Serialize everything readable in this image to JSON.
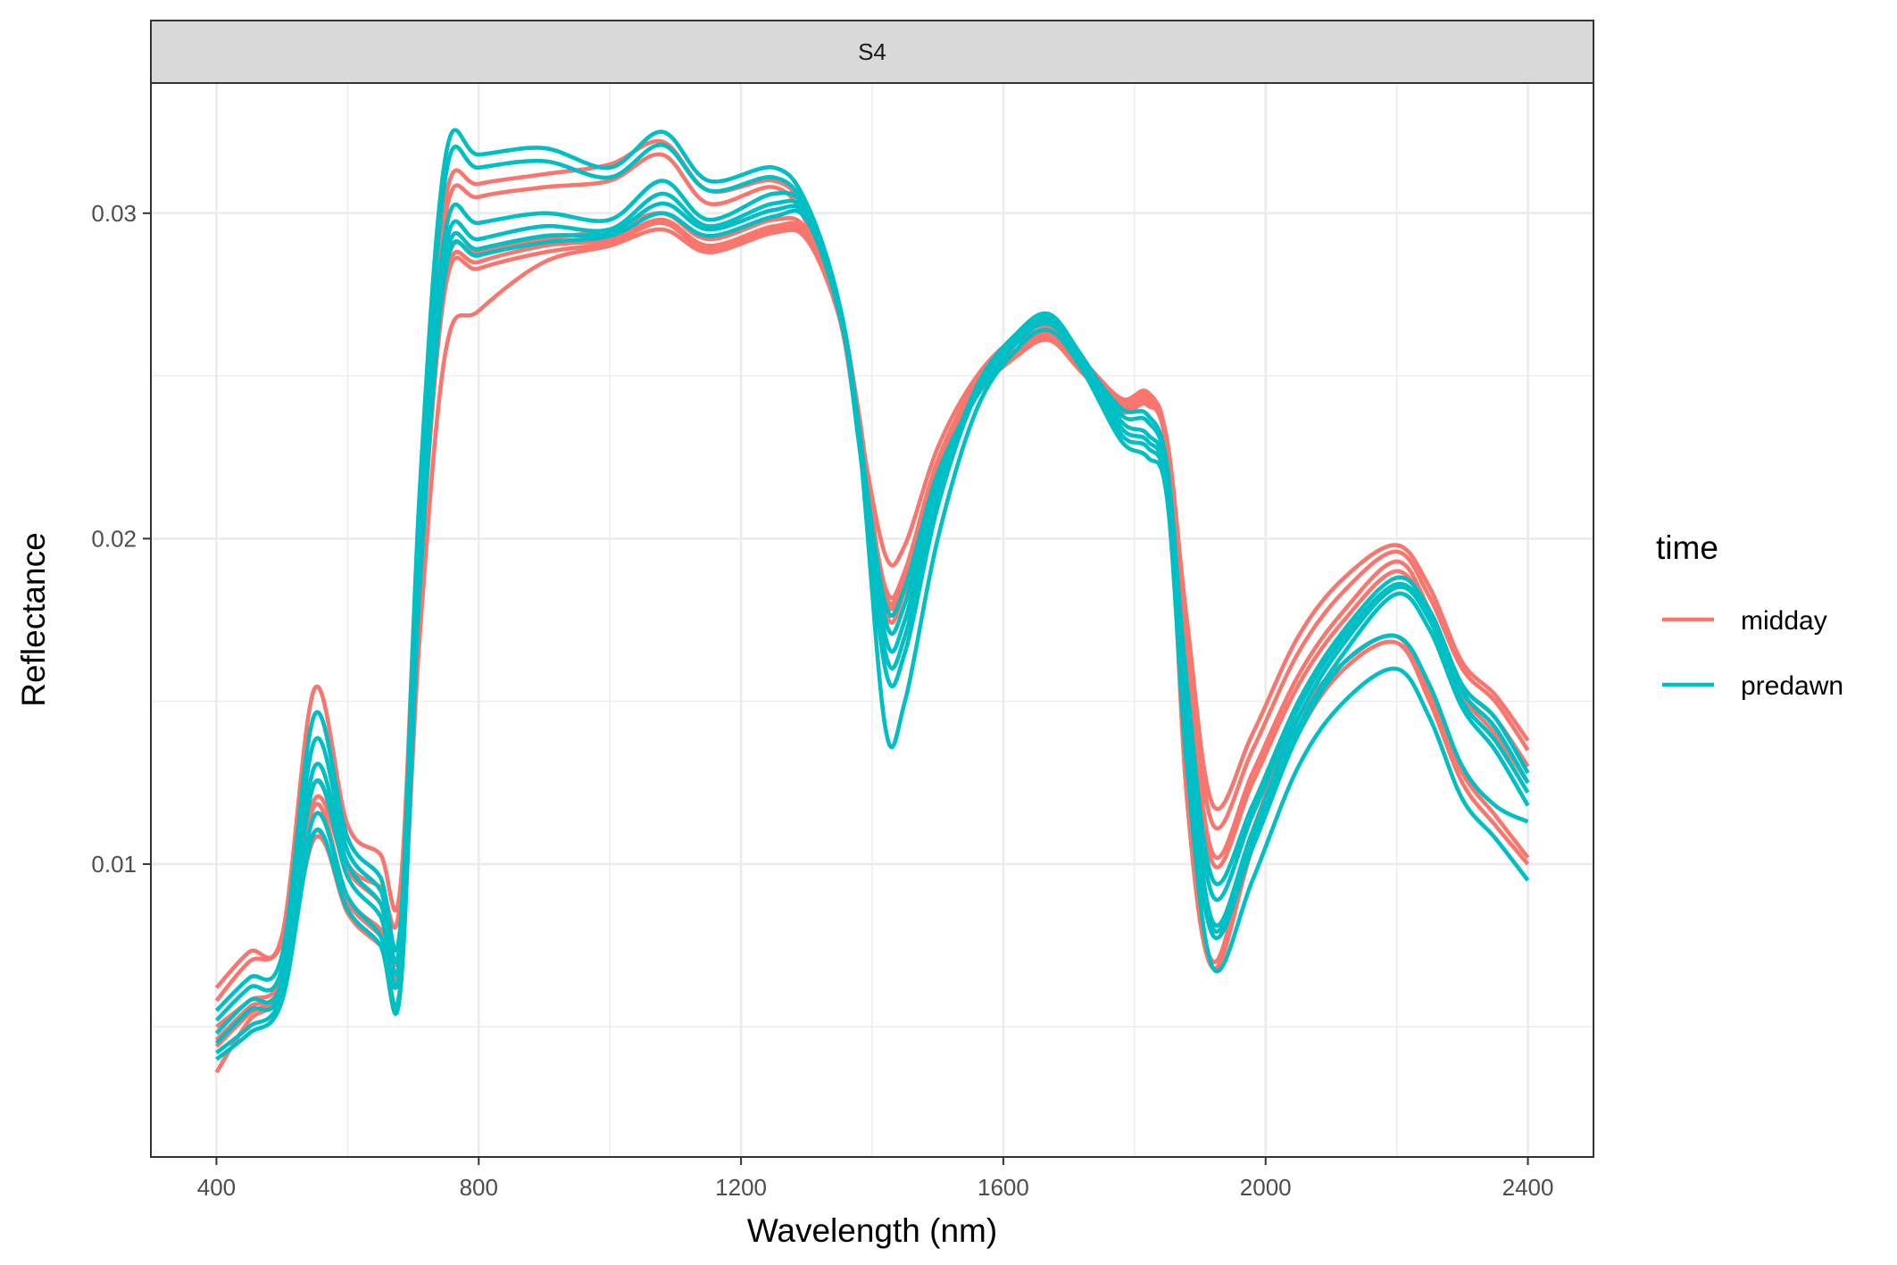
{
  "chart_data": {
    "type": "line",
    "facet_label": "S4",
    "xlabel": "Wavelength (nm)",
    "ylabel": "Reflectance",
    "xlim": [
      300,
      2500
    ],
    "ylim": [
      0.001,
      0.034
    ],
    "x_ticks": [
      400,
      800,
      1200,
      1600,
      2000,
      2400
    ],
    "x_tick_labels": [
      "400",
      "800",
      "1200",
      "1600",
      "2000",
      "2400"
    ],
    "y_ticks": [
      0.01,
      0.02,
      0.03
    ],
    "y_tick_labels": [
      "0.01",
      "0.02",
      "0.03"
    ],
    "grid": true,
    "legend": {
      "title": "time",
      "placement": "right",
      "entries": [
        {
          "label": "midday",
          "color": "#F8766D"
        },
        {
          "label": "predawn",
          "color": "#00BFC4"
        }
      ]
    },
    "x": [
      400,
      450,
      500,
      550,
      600,
      650,
      680,
      710,
      750,
      800,
      900,
      1000,
      1080,
      1150,
      1250,
      1300,
      1350,
      1380,
      1420,
      1450,
      1500,
      1560,
      1620,
      1670,
      1720,
      1780,
      1820,
      1850,
      1880,
      1920,
      1980,
      2050,
      2120,
      2200,
      2250,
      2300,
      2350,
      2400
    ],
    "series": [
      {
        "group": "midday",
        "values": [
          0.0062,
          0.0073,
          0.0078,
          0.0154,
          0.0112,
          0.0103,
          0.0092,
          0.021,
          0.0305,
          0.0309,
          0.0312,
          0.0315,
          0.0322,
          0.0307,
          0.031,
          0.03,
          0.027,
          0.0235,
          0.0195,
          0.0198,
          0.0228,
          0.025,
          0.0262,
          0.0265,
          0.0255,
          0.0243,
          0.0245,
          0.023,
          0.0175,
          0.0118,
          0.014,
          0.017,
          0.0188,
          0.0198,
          0.0185,
          0.0162,
          0.0152,
          0.0138
        ]
      },
      {
        "group": "midday",
        "values": [
          0.0058,
          0.007,
          0.0076,
          0.0125,
          0.01,
          0.0093,
          0.0088,
          0.0205,
          0.03,
          0.0305,
          0.0308,
          0.031,
          0.0318,
          0.0303,
          0.0308,
          0.0297,
          0.0268,
          0.0232,
          0.0185,
          0.019,
          0.0224,
          0.0248,
          0.026,
          0.0264,
          0.0254,
          0.0242,
          0.0244,
          0.0229,
          0.017,
          0.0112,
          0.0135,
          0.0165,
          0.0184,
          0.0196,
          0.0182,
          0.016,
          0.015,
          0.0135
        ]
      },
      {
        "group": "midday",
        "values": [
          0.005,
          0.0058,
          0.0066,
          0.012,
          0.0098,
          0.0088,
          0.0075,
          0.0195,
          0.0283,
          0.0288,
          0.0292,
          0.0295,
          0.03,
          0.0292,
          0.0298,
          0.0295,
          0.027,
          0.0238,
          0.0182,
          0.0188,
          0.0222,
          0.0246,
          0.0258,
          0.0263,
          0.0253,
          0.0241,
          0.0243,
          0.0228,
          0.0165,
          0.0103,
          0.0128,
          0.0158,
          0.0178,
          0.0193,
          0.0178,
          0.0155,
          0.0145,
          0.013
        ]
      },
      {
        "group": "midday",
        "values": [
          0.0046,
          0.0056,
          0.0064,
          0.0118,
          0.009,
          0.008,
          0.0072,
          0.019,
          0.028,
          0.0285,
          0.029,
          0.0292,
          0.0298,
          0.029,
          0.0296,
          0.0294,
          0.0269,
          0.0237,
          0.018,
          0.0186,
          0.022,
          0.0245,
          0.0257,
          0.0262,
          0.0252,
          0.024,
          0.0242,
          0.0227,
          0.016,
          0.01,
          0.0125,
          0.0155,
          0.0175,
          0.019,
          0.0176,
          0.0152,
          0.014,
          0.0125
        ]
      },
      {
        "group": "midday",
        "values": [
          0.0036,
          0.0052,
          0.0062,
          0.011,
          0.0085,
          0.0075,
          0.0068,
          0.017,
          0.0258,
          0.027,
          0.0285,
          0.029,
          0.0295,
          0.0288,
          0.0294,
          0.0292,
          0.0268,
          0.0236,
          0.0183,
          0.019,
          0.0224,
          0.0247,
          0.0258,
          0.0262,
          0.0252,
          0.0241,
          0.0243,
          0.0226,
          0.012,
          0.0068,
          0.0105,
          0.014,
          0.016,
          0.0168,
          0.015,
          0.0125,
          0.0112,
          0.01
        ]
      },
      {
        "group": "midday",
        "values": [
          0.0044,
          0.0054,
          0.0063,
          0.0108,
          0.0088,
          0.0078,
          0.007,
          0.0185,
          0.0278,
          0.0283,
          0.0288,
          0.0291,
          0.0297,
          0.0289,
          0.0295,
          0.0293,
          0.0268,
          0.0236,
          0.0178,
          0.0184,
          0.0219,
          0.0244,
          0.0256,
          0.0261,
          0.0251,
          0.0239,
          0.0241,
          0.0225,
          0.0125,
          0.007,
          0.011,
          0.0145,
          0.0162,
          0.017,
          0.0152,
          0.0128,
          0.0115,
          0.0102
        ]
      },
      {
        "group": "predawn",
        "values": [
          0.0055,
          0.0065,
          0.0072,
          0.0146,
          0.0108,
          0.0096,
          0.008,
          0.0215,
          0.0318,
          0.0318,
          0.032,
          0.0314,
          0.0325,
          0.031,
          0.0314,
          0.0303,
          0.0272,
          0.023,
          0.016,
          0.0165,
          0.021,
          0.0245,
          0.0262,
          0.0268,
          0.0255,
          0.024,
          0.0238,
          0.0222,
          0.0155,
          0.0095,
          0.0118,
          0.015,
          0.0172,
          0.0188,
          0.0178,
          0.0155,
          0.0145,
          0.0128
        ]
      },
      {
        "group": "predawn",
        "values": [
          0.0052,
          0.0062,
          0.0068,
          0.0138,
          0.0104,
          0.0092,
          0.0076,
          0.0205,
          0.0312,
          0.0314,
          0.0316,
          0.0311,
          0.0321,
          0.0307,
          0.0311,
          0.0301,
          0.0271,
          0.0229,
          0.0165,
          0.017,
          0.0213,
          0.0247,
          0.0263,
          0.0269,
          0.0256,
          0.0238,
          0.0236,
          0.022,
          0.015,
          0.009,
          0.0115,
          0.0148,
          0.017,
          0.0186,
          0.0176,
          0.0153,
          0.0142,
          0.0125
        ]
      },
      {
        "group": "predawn",
        "values": [
          0.0048,
          0.0058,
          0.0064,
          0.013,
          0.01,
          0.0088,
          0.0072,
          0.0198,
          0.0295,
          0.0297,
          0.03,
          0.0298,
          0.031,
          0.0298,
          0.0306,
          0.0301,
          0.0272,
          0.0234,
          0.017,
          0.0175,
          0.0215,
          0.0246,
          0.0262,
          0.0268,
          0.0256,
          0.0236,
          0.0232,
          0.0218,
          0.0145,
          0.0082,
          0.011,
          0.0145,
          0.0168,
          0.0185,
          0.0175,
          0.015,
          0.0138,
          0.0122
        ]
      },
      {
        "group": "predawn",
        "values": [
          0.0045,
          0.0055,
          0.0062,
          0.0125,
          0.0096,
          0.0084,
          0.0068,
          0.0195,
          0.029,
          0.0292,
          0.0296,
          0.0295,
          0.0306,
          0.0296,
          0.0303,
          0.03,
          0.0271,
          0.0233,
          0.0175,
          0.018,
          0.0218,
          0.0245,
          0.0261,
          0.0267,
          0.0255,
          0.0234,
          0.023,
          0.0216,
          0.014,
          0.008,
          0.0108,
          0.0142,
          0.0165,
          0.0183,
          0.0172,
          0.0148,
          0.0135,
          0.0118
        ]
      },
      {
        "group": "predawn",
        "values": [
          0.0042,
          0.005,
          0.006,
          0.0115,
          0.009,
          0.0078,
          0.0062,
          0.019,
          0.0286,
          0.0289,
          0.0293,
          0.0294,
          0.0303,
          0.0295,
          0.0301,
          0.0299,
          0.027,
          0.0232,
          0.018,
          0.0185,
          0.022,
          0.0244,
          0.026,
          0.0266,
          0.0254,
          0.0232,
          0.0228,
          0.0214,
          0.0135,
          0.0078,
          0.0105,
          0.014,
          0.0162,
          0.017,
          0.0155,
          0.013,
          0.0118,
          0.0113
        ]
      },
      {
        "group": "predawn",
        "values": [
          0.004,
          0.0048,
          0.0058,
          0.011,
          0.0086,
          0.0075,
          0.006,
          0.0185,
          0.0283,
          0.0287,
          0.0291,
          0.0293,
          0.03,
          0.0293,
          0.0299,
          0.0298,
          0.0269,
          0.0231,
          0.0142,
          0.015,
          0.02,
          0.024,
          0.0258,
          0.0264,
          0.0252,
          0.023,
          0.0225,
          0.0212,
          0.013,
          0.0068,
          0.0095,
          0.013,
          0.015,
          0.016,
          0.0145,
          0.012,
          0.0108,
          0.0095
        ]
      }
    ]
  }
}
